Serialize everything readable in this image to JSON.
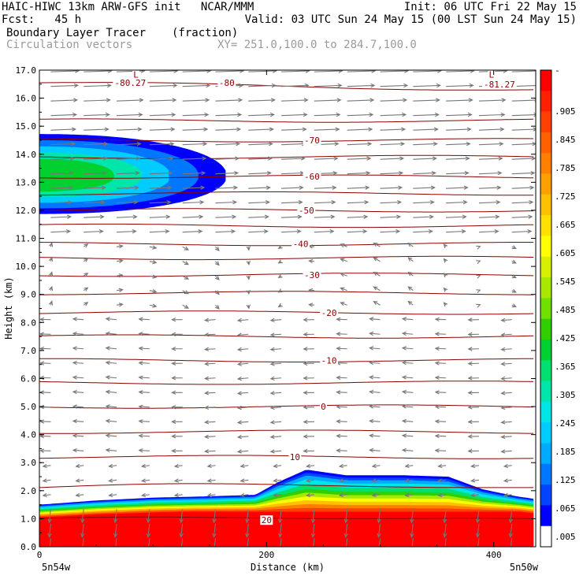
{
  "header": {
    "line1_left": "HAIC-HIWC 13km ARW-GFS init   NCAR/MMM",
    "line1_right": "Init: 06 UTC Fri 22 May 15",
    "line2_left": "Fcst:   45 h",
    "line2_right": "Valid: 03 UTC Sun 24 May 15 (00 LST Sun 24 May 15)",
    "field1_name": "Boundary Layer Tracer",
    "field1_units": "(fraction)",
    "field2_name": "Circulation vectors",
    "cross_section": "XY= 251.0,100.0 to 284.7,100.0"
  },
  "colors": {
    "contour": "#8b0000",
    "vector": "#777777",
    "scale": [
      "#ffffff",
      "#0000ff",
      "#0044ff",
      "#0077ff",
      "#00aaff",
      "#00ccff",
      "#00e5e5",
      "#00e5aa",
      "#00e070",
      "#00d030",
      "#30d000",
      "#70e000",
      "#a8e800",
      "#d8f000",
      "#ffff00",
      "#ffe000",
      "#ffc000",
      "#ffa000",
      "#ff8000",
      "#ff6000",
      "#ff4000",
      "#ff2000",
      "#ff0000"
    ]
  },
  "chart_data": {
    "type": "heatmap",
    "xlabel": "Distance (km)",
    "ylabel": "Height (km)",
    "xlim": [
      0,
      437
    ],
    "ylim": [
      0,
      17
    ],
    "x_ticks": [
      0,
      200,
      400
    ],
    "x_tick_labels": [
      "0",
      "200",
      "400"
    ],
    "y_ticks": [
      0,
      1,
      2,
      3,
      4,
      5,
      6,
      7,
      8,
      9,
      10,
      11,
      12,
      13,
      14,
      15,
      16,
      17
    ],
    "y_tick_labels": [
      "0.0",
      "1.0",
      "2.0",
      "3.0",
      "4.0",
      "5.0",
      "6.0",
      "7.0",
      "8.0",
      "9.0",
      "10.0",
      "11.0",
      "12.0",
      "13.0",
      "14.0",
      "15.0",
      "16.0",
      "17.0"
    ],
    "x_end_labels": [
      "5n54w",
      "5n50w"
    ],
    "colorbar_labels": [
      "-",
      ".905",
      ".845",
      ".785",
      ".725",
      ".665",
      ".605",
      ".545",
      ".485",
      ".425",
      ".365",
      ".305",
      ".245",
      ".185",
      ".125",
      ".065",
      ".005"
    ],
    "contour_labels": [
      {
        "text": "-80.27",
        "x": 80,
        "y": 16.55
      },
      {
        "text": "-80",
        "x": 165,
        "y": 16.55
      },
      {
        "text": "-81.27",
        "x": 405,
        "y": 16.5
      },
      {
        "text": "L",
        "x": 85,
        "y": 16.85
      },
      {
        "text": "L",
        "x": 398,
        "y": 16.85
      },
      {
        "text": "-70",
        "x": 240,
        "y": 14.5
      },
      {
        "text": "-60",
        "x": 240,
        "y": 13.2
      },
      {
        "text": "-50",
        "x": 235,
        "y": 12.0
      },
      {
        "text": "-40",
        "x": 230,
        "y": 10.8
      },
      {
        "text": "-30",
        "x": 240,
        "y": 9.7
      },
      {
        "text": "-20",
        "x": 255,
        "y": 8.35
      },
      {
        "text": "-10",
        "x": 255,
        "y": 6.65
      },
      {
        "text": "0",
        "x": 250,
        "y": 5.0
      },
      {
        "text": "10",
        "x": 225,
        "y": 3.2
      },
      {
        "text": "20",
        "x": 200,
        "y": 0.95
      }
    ],
    "contour_levels": [
      {
        "level": -80,
        "y": 16.55
      },
      {
        "level": -75,
        "y": 15.2
      },
      {
        "level": -70,
        "y": 14.5
      },
      {
        "level": -65,
        "y": 13.9
      },
      {
        "level": -60,
        "y": 13.2
      },
      {
        "level": -55,
        "y": 12.6
      },
      {
        "level": -50,
        "y": 12.0
      },
      {
        "level": -45,
        "y": 11.45
      },
      {
        "level": -40,
        "y": 10.8
      },
      {
        "level": -35,
        "y": 10.3
      },
      {
        "level": -30,
        "y": 9.7
      },
      {
        "level": -25,
        "y": 9.05
      },
      {
        "level": -20,
        "y": 8.35
      },
      {
        "level": -15,
        "y": 7.5
      },
      {
        "level": -10,
        "y": 6.65
      },
      {
        "level": -5,
        "y": 5.85
      },
      {
        "level": 0,
        "y": 5.0
      },
      {
        "level": 5,
        "y": 4.1
      },
      {
        "level": 10,
        "y": 3.2
      },
      {
        "level": 15,
        "y": 2.1
      },
      {
        "level": 20,
        "y": 0.95
      }
    ],
    "upper_tracer_plume": {
      "max_extent_km": 165,
      "top_km": 14.6,
      "bottom_km": 11.8
    },
    "boundary_layer_top_km": [
      [
        0,
        1.5
      ],
      [
        50,
        1.65
      ],
      [
        100,
        1.75
      ],
      [
        150,
        1.8
      ],
      [
        190,
        1.85
      ],
      [
        210,
        2.3
      ],
      [
        235,
        2.75
      ],
      [
        270,
        2.55
      ],
      [
        320,
        2.55
      ],
      [
        360,
        2.5
      ],
      [
        390,
        2.05
      ],
      [
        420,
        1.8
      ],
      [
        437,
        1.7
      ]
    ]
  }
}
